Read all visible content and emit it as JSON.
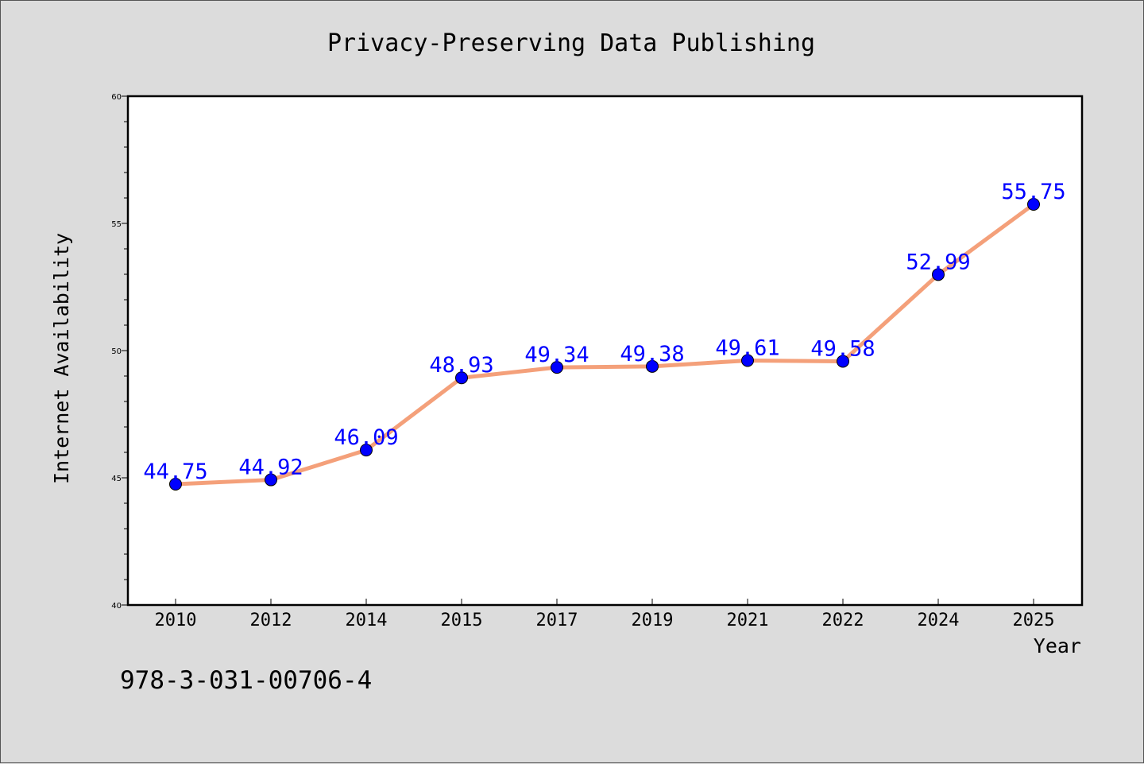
{
  "chart_data": {
    "type": "line",
    "title": "Privacy-Preserving Data Publishing",
    "xlabel": "Year",
    "ylabel": "Internet Availability",
    "categories": [
      "2010",
      "2012",
      "2014",
      "2015",
      "2017",
      "2019",
      "2021",
      "2022",
      "2024",
      "2025"
    ],
    "series": [
      {
        "values": [
          44.75,
          44.92,
          46.09,
          48.93,
          49.34,
          49.38,
          49.61,
          49.58,
          52.99,
          55.75
        ],
        "data_labels": [
          "44.75",
          "44.92",
          "46.09",
          "48.93",
          "49.34",
          "49.38",
          "49.61",
          "49.58",
          "52.99",
          "55.75"
        ],
        "line_color": "#f4a07a",
        "marker_color": "#0000ff"
      }
    ],
    "ylim": [
      40,
      60
    ],
    "y_ticks": [
      "40",
      "45",
      "50",
      "55",
      "60"
    ],
    "grid": false,
    "legend": "none"
  },
  "annotation": "978-3-031-00706-4",
  "colors": {
    "background": "#dcdcdc",
    "plot_area": "#ffffff",
    "axis": "#000000",
    "data_label": "#0000ff"
  }
}
